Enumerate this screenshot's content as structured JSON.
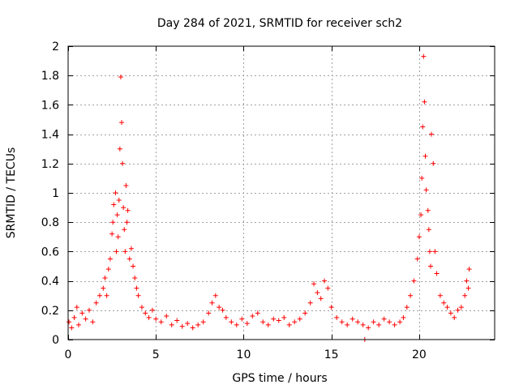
{
  "chart_data": {
    "type": "scatter",
    "title": "Day 284 of 2021, SRMTID for receiver sch2",
    "xlabel": "GPS time / hours",
    "ylabel": "SRMTID / TECUs",
    "xlim": [
      0,
      24.3
    ],
    "ylim": [
      0,
      2
    ],
    "xticks": [
      0,
      5,
      10,
      15,
      20
    ],
    "xtick_labels": [
      "0",
      "5",
      "10",
      "15",
      "20"
    ],
    "yticks": [
      0,
      0.2,
      0.4,
      0.6,
      0.8,
      1,
      1.2,
      1.4,
      1.6,
      1.8,
      2
    ],
    "ytick_labels": [
      "0",
      "0.2",
      "0.4",
      "0.6",
      "0.8",
      "1",
      "1.2",
      "1.4",
      "1.6",
      "1.8",
      "2"
    ],
    "grid": true,
    "marker": "plus",
    "series_color": "#ff0000",
    "series": [
      {
        "name": "SRMTID",
        "x": [
          0.05,
          0.2,
          0.35,
          0.5,
          0.6,
          0.8,
          1.0,
          1.2,
          1.4,
          1.6,
          1.8,
          2.0,
          2.1,
          2.2,
          2.3,
          2.4,
          2.5,
          2.55,
          2.6,
          2.7,
          2.75,
          2.8,
          2.85,
          2.9,
          2.95,
          3.0,
          3.05,
          3.1,
          3.15,
          3.2,
          3.25,
          3.3,
          3.35,
          3.4,
          3.5,
          3.6,
          3.7,
          3.8,
          3.9,
          4.0,
          4.2,
          4.4,
          4.6,
          4.8,
          5.0,
          5.3,
          5.6,
          5.9,
          6.2,
          6.5,
          6.8,
          7.1,
          7.4,
          7.7,
          8.0,
          8.2,
          8.4,
          8.6,
          8.8,
          9.0,
          9.3,
          9.6,
          9.9,
          10.2,
          10.5,
          10.8,
          11.1,
          11.4,
          11.7,
          12.0,
          12.3,
          12.6,
          12.9,
          13.2,
          13.5,
          13.8,
          14.0,
          14.2,
          14.4,
          14.6,
          14.8,
          15.0,
          15.3,
          15.6,
          15.9,
          16.2,
          16.5,
          16.8,
          16.9,
          17.1,
          17.4,
          17.7,
          18.0,
          18.3,
          18.6,
          18.9,
          19.1,
          19.3,
          19.5,
          19.7,
          19.9,
          20.0,
          20.1,
          20.15,
          20.2,
          20.25,
          20.3,
          20.35,
          20.4,
          20.5,
          20.55,
          20.6,
          20.65,
          20.7,
          20.8,
          20.9,
          21.0,
          21.2,
          21.4,
          21.6,
          21.8,
          22.0,
          22.2,
          22.4,
          22.6,
          22.7,
          22.8,
          22.85
        ],
        "y": [
          0.12,
          0.08,
          0.15,
          0.22,
          0.1,
          0.18,
          0.14,
          0.2,
          0.12,
          0.25,
          0.3,
          0.35,
          0.42,
          0.3,
          0.48,
          0.55,
          0.72,
          0.8,
          0.92,
          1.0,
          0.6,
          0.85,
          0.7,
          0.95,
          1.3,
          1.79,
          1.48,
          1.2,
          0.9,
          0.75,
          0.6,
          1.05,
          0.8,
          0.88,
          0.55,
          0.62,
          0.5,
          0.42,
          0.35,
          0.3,
          0.22,
          0.18,
          0.15,
          0.2,
          0.14,
          0.12,
          0.16,
          0.1,
          0.13,
          0.09,
          0.11,
          0.08,
          0.1,
          0.12,
          0.18,
          0.25,
          0.3,
          0.22,
          0.2,
          0.15,
          0.12,
          0.1,
          0.14,
          0.11,
          0.16,
          0.18,
          0.12,
          0.1,
          0.14,
          0.13,
          0.15,
          0.1,
          0.12,
          0.14,
          0.18,
          0.25,
          0.38,
          0.32,
          0.28,
          0.4,
          0.35,
          0.22,
          0.15,
          0.12,
          0.1,
          0.14,
          0.12,
          0.1,
          0.0,
          0.08,
          0.12,
          0.1,
          0.14,
          0.12,
          0.1,
          0.12,
          0.15,
          0.22,
          0.3,
          0.4,
          0.55,
          0.7,
          0.85,
          1.1,
          1.45,
          1.93,
          1.62,
          1.25,
          1.02,
          0.88,
          0.75,
          0.6,
          0.5,
          1.4,
          1.2,
          0.6,
          0.45,
          0.3,
          0.25,
          0.22,
          0.18,
          0.15,
          0.2,
          0.22,
          0.3,
          0.4,
          0.35,
          0.48
        ]
      }
    ]
  }
}
